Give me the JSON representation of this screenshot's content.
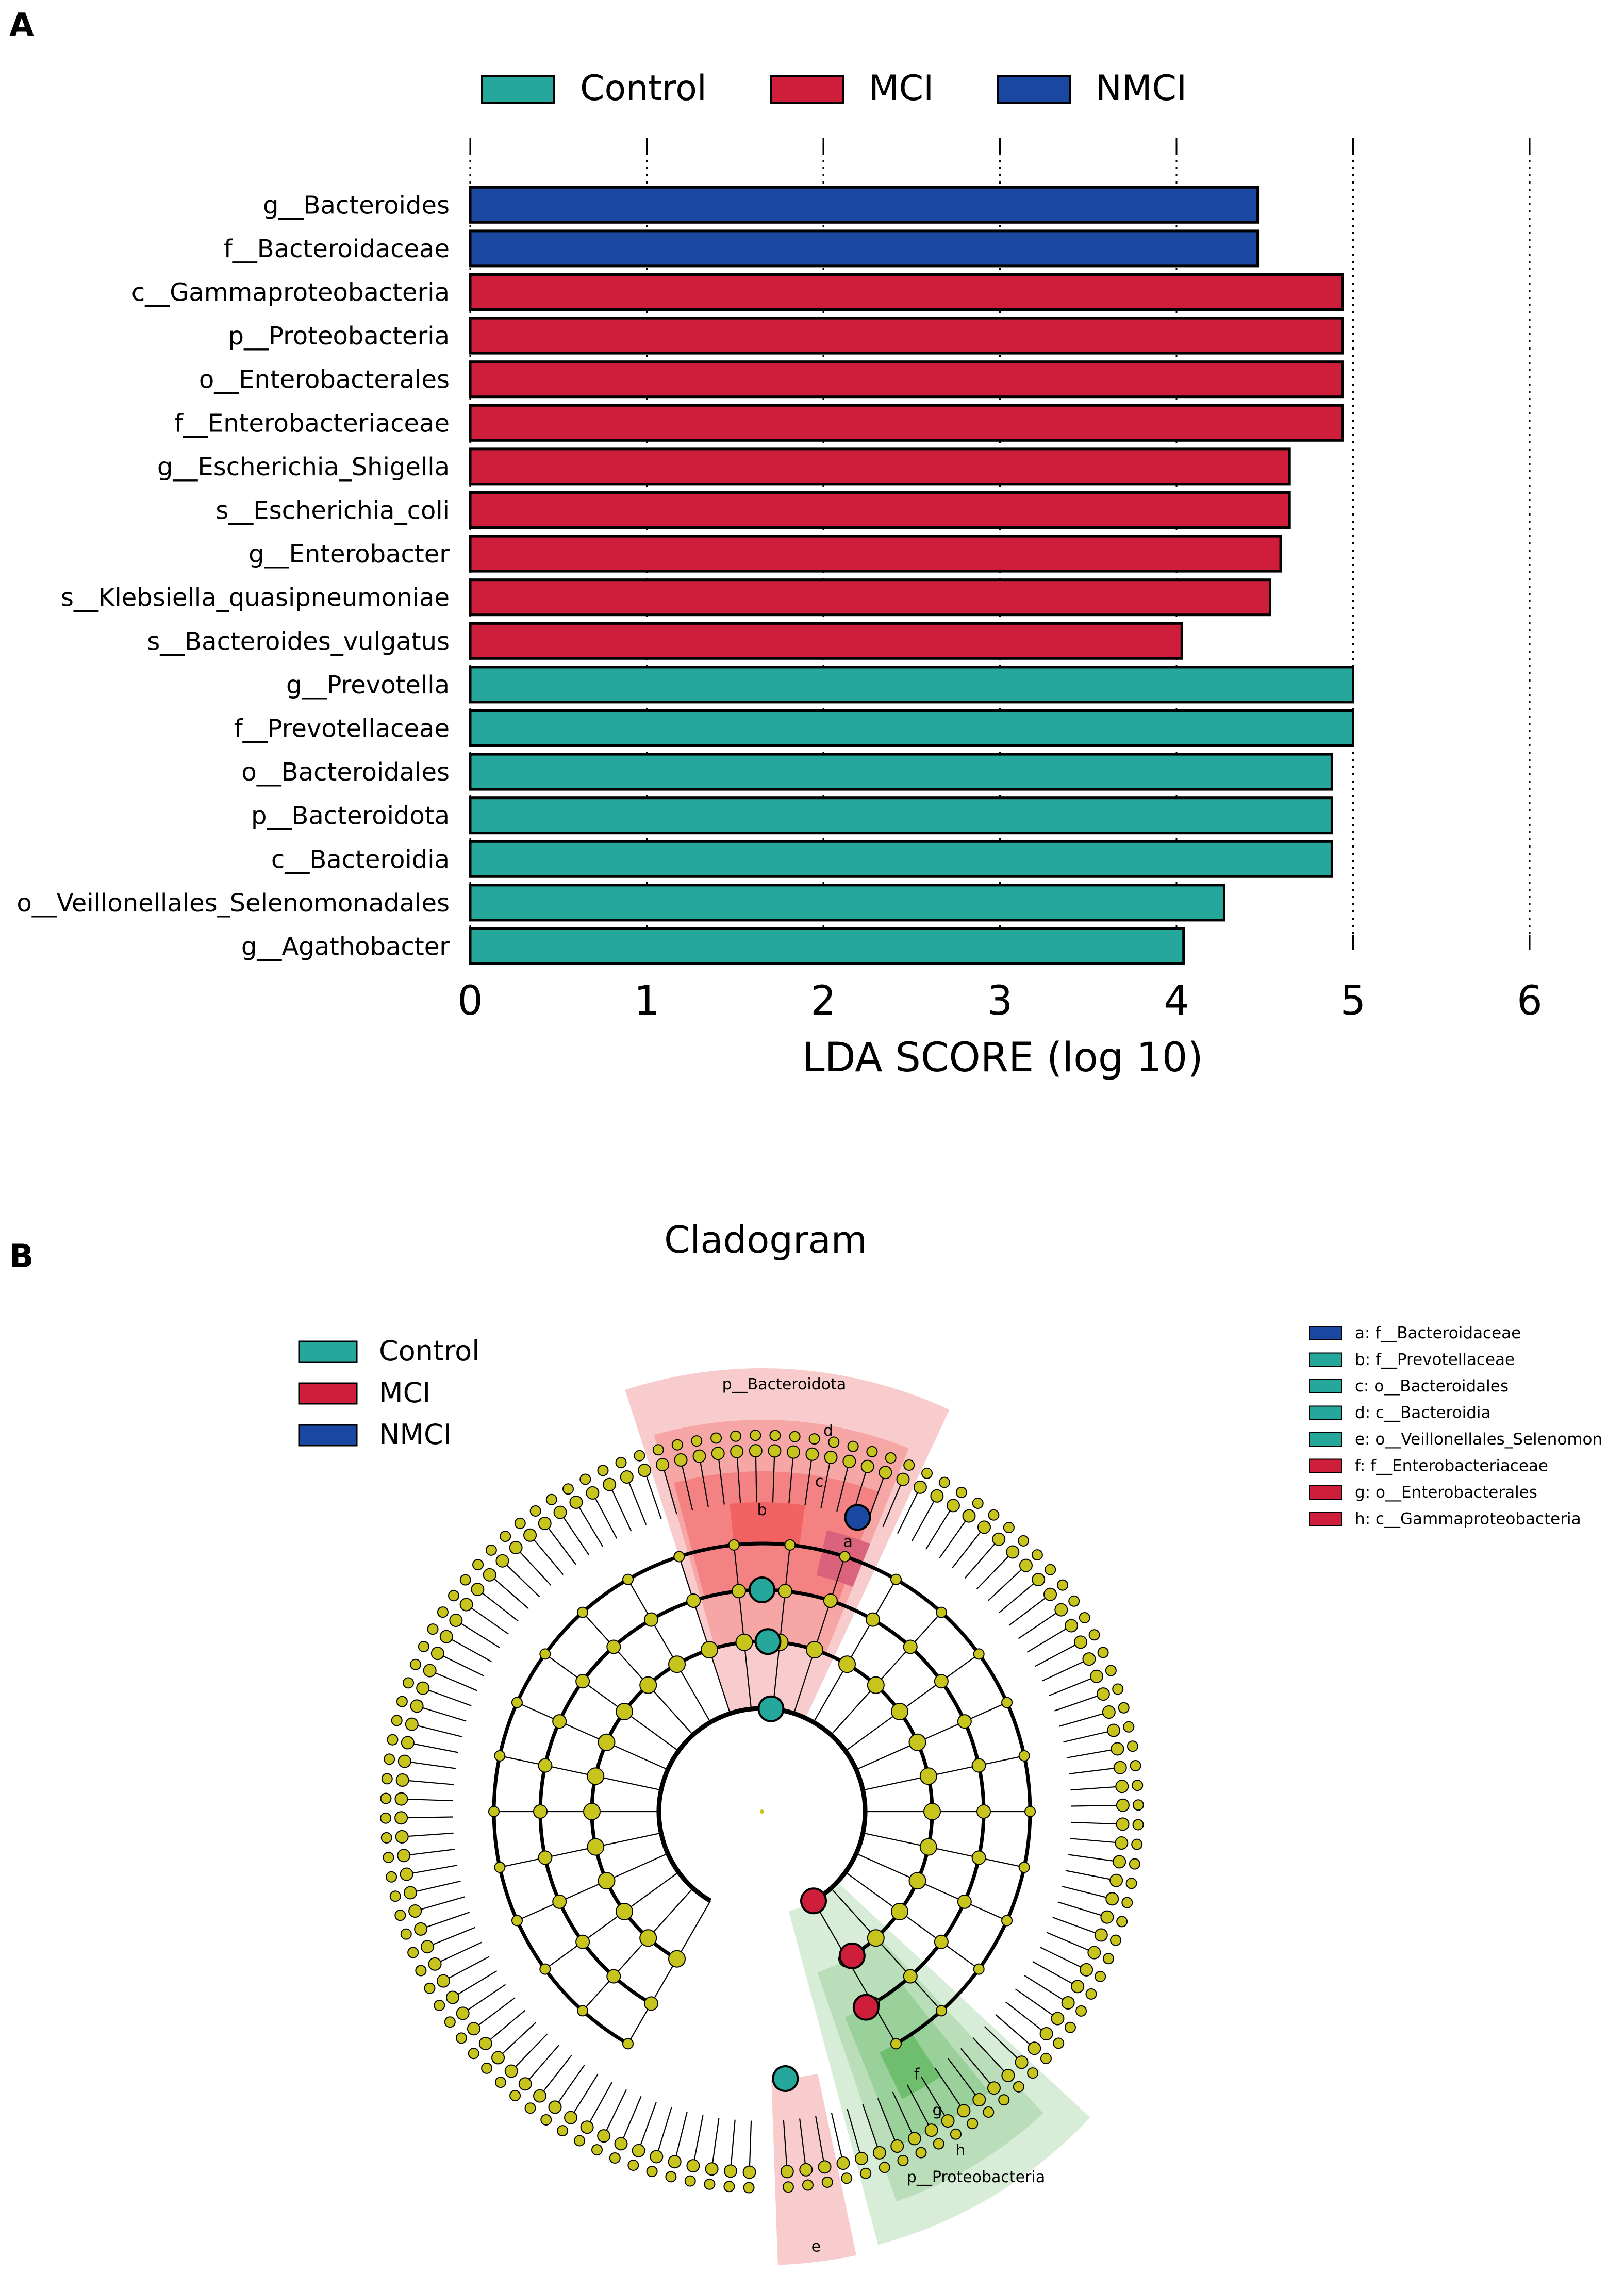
{
  "panel_a": {
    "label": "A"
  },
  "panel_b": {
    "label": "B"
  },
  "chart_data": [
    {
      "type": "bar",
      "orientation": "horizontal",
      "title": "",
      "xlabel": "LDA SCORE (log 10)",
      "ylabel": "",
      "xlim": [
        0,
        6
      ],
      "xticks": [
        "0",
        "1",
        "2",
        "3",
        "4",
        "5",
        "6"
      ],
      "grid": "vertical dotted",
      "legend": [
        {
          "name": "Control",
          "color": "#26a79b"
        },
        {
          "name": "MCI",
          "color": "#cf1e3c"
        },
        {
          "name": "NMCI",
          "color": "#1a47a0"
        }
      ],
      "categories": [
        "g__Bacteroides",
        "f__Bacteroidaceae",
        "c__Gammaproteobacteria",
        "p__Proteobacteria",
        "o__Enterobacterales",
        "f__Enterobacteriaceae",
        "g__Escherichia_Shigella",
        "s__Escherichia_coli",
        "g__Enterobacter",
        "s__Klebsiella_quasipneumoniae",
        "s__Bacteroides_vulgatus",
        "g__Prevotella",
        "f__Prevotellaceae",
        "o__Bacteroidales",
        "p__Bacteroidota",
        "c__Bacteroidia",
        "o__Veillonellales_Selenomonadales",
        "g__Agathobacter"
      ],
      "values": [
        4.46,
        4.46,
        4.94,
        4.94,
        4.94,
        4.94,
        4.64,
        4.64,
        4.59,
        4.53,
        4.03,
        5.0,
        5.0,
        4.88,
        4.88,
        4.88,
        4.27,
        4.04
      ],
      "groups": [
        "NMCI",
        "NMCI",
        "MCI",
        "MCI",
        "MCI",
        "MCI",
        "MCI",
        "MCI",
        "MCI",
        "MCI",
        "MCI",
        "Control",
        "Control",
        "Control",
        "Control",
        "Control",
        "Control",
        "Control"
      ]
    },
    {
      "type": "cladogram",
      "title": "Cladogram",
      "legend": [
        {
          "name": "Control",
          "color": "#26a79b"
        },
        {
          "name": "MCI",
          "color": "#cf1e3c"
        },
        {
          "name": "NMCI",
          "color": "#1a47a0"
        }
      ],
      "key": [
        {
          "text": "a: f__Bacteroidaceae",
          "color": "#1a47a0"
        },
        {
          "text": "b: f__Prevotellaceae",
          "color": "#26a79b"
        },
        {
          "text": "c: o__Bacteroidales",
          "color": "#26a79b"
        },
        {
          "text": "d: c__Bacteroidia",
          "color": "#26a79b"
        },
        {
          "text": "e: o__Veillonellales_Selenomon",
          "color": "#26a79b"
        },
        {
          "text": "f: f__Enterobacteriaceae",
          "color": "#cf1e3c"
        },
        {
          "text": "g: o__Enterobacterales",
          "color": "#cf1e3c"
        },
        {
          "text": "h: c__Gammaproteobacteria",
          "color": "#cf1e3c"
        }
      ],
      "clade_labels": {
        "bacteroidota": "p__Bacteroidota",
        "proteobacteria": "p__Proteobacteria",
        "a": "a",
        "b": "b",
        "c": "c",
        "d": "d",
        "e": "e",
        "f": "f",
        "g": "g",
        "h": "h"
      }
    }
  ]
}
